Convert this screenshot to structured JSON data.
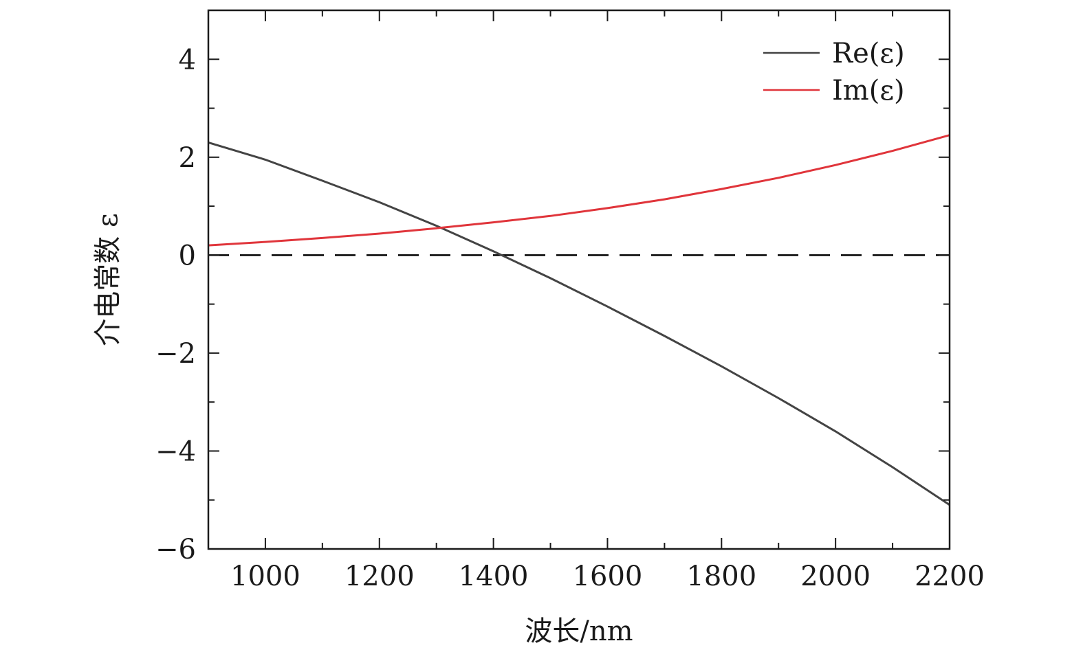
{
  "chart_data": {
    "type": "line",
    "xlabel": "波长/nm",
    "ylabel": "介电常数 ε",
    "xlim": [
      900,
      2200
    ],
    "ylim": [
      -6,
      5
    ],
    "x_ticks": [
      1000,
      1200,
      1400,
      1600,
      1800,
      2000,
      2200
    ],
    "x_minor_ticks": [
      1100,
      1300,
      1500,
      1700,
      1900,
      2100
    ],
    "y_ticks": [
      -6,
      -4,
      -2,
      0,
      2,
      4
    ],
    "y_tick_labels": [
      "−6",
      "−4",
      "−2",
      "0",
      "2",
      "4"
    ],
    "y_minor_ticks": [
      -5,
      -3,
      -1,
      1,
      3
    ],
    "grid": false,
    "legend_position": "top-right",
    "reference_line": {
      "y": 0,
      "style": "dashed",
      "color": "#000000"
    },
    "series": [
      {
        "name": "Re(ε)",
        "color": "#444444",
        "x": [
          900,
          1000,
          1100,
          1200,
          1300,
          1400,
          1500,
          1600,
          1700,
          1800,
          1900,
          2000,
          2100,
          2200
        ],
        "y": [
          2.3,
          1.95,
          1.52,
          1.08,
          0.6,
          0.08,
          -0.47,
          -1.05,
          -1.65,
          -2.27,
          -2.92,
          -3.6,
          -4.33,
          -5.1
        ]
      },
      {
        "name": "Im(ε)",
        "color": "#e0353b",
        "x": [
          900,
          1000,
          1100,
          1200,
          1300,
          1400,
          1500,
          1600,
          1700,
          1800,
          1900,
          2000,
          2100,
          2200
        ],
        "y": [
          0.2,
          0.27,
          0.35,
          0.44,
          0.55,
          0.67,
          0.8,
          0.96,
          1.14,
          1.35,
          1.58,
          1.84,
          2.13,
          2.45
        ]
      }
    ]
  }
}
